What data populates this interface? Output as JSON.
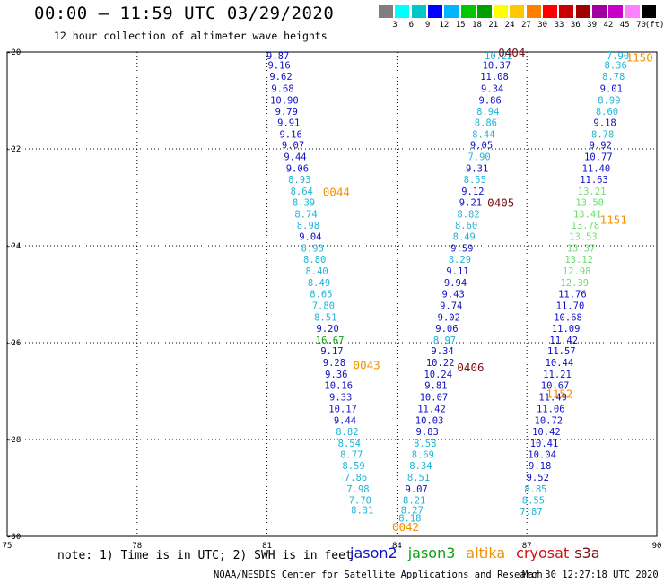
{
  "title": "00:00 – 11:59 UTC 03/29/2020",
  "subtitle": "12 hour collection of altimeter wave heights",
  "color_scale": {
    "unit_label": "(ft)",
    "labels": [
      "3",
      "6",
      "9",
      "12",
      "15",
      "18",
      "21",
      "24",
      "27",
      "30",
      "33",
      "36",
      "39",
      "42",
      "45",
      "70"
    ],
    "colors": [
      "#7f7f7f",
      "#00ffff",
      "#00c8c8",
      "#0000ff",
      "#00b4ff",
      "#00c800",
      "#00a000",
      "#ffff00",
      "#ffc800",
      "#ff8000",
      "#ff0000",
      "#c80000",
      "#a00000",
      "#a000a0",
      "#c800c8",
      "#ff80ff",
      "#000000"
    ]
  },
  "axes": {
    "lon_min": 75,
    "lon_max": 90,
    "lat_min": -30,
    "lat_max": -20,
    "x_ticks": [
      "75",
      "78",
      "81",
      "84",
      "87",
      "90"
    ],
    "y_ticks": [
      "-20",
      "-22",
      "-24",
      "-26",
      "-28",
      "-30"
    ]
  },
  "series_colors": {
    "jason2": "#1010c8",
    "jason3": "#10a010",
    "altika": "#f59000",
    "cryosat": "#d01010",
    "s3a": "#7a1010",
    "cyan": "#20b4d8",
    "lightgreen": "#70dc70"
  },
  "tracks": [
    {
      "color": "jason2",
      "points": [
        [
          81.25,
          -20.07,
          "9.87"
        ],
        [
          81.28,
          -20.27,
          "9.16"
        ],
        [
          81.32,
          -20.5,
          "9.62"
        ],
        [
          81.36,
          -20.75,
          "9.68"
        ],
        [
          81.4,
          -20.99,
          "10.90"
        ],
        [
          81.45,
          -21.22,
          "9.79"
        ],
        [
          81.5,
          -21.45,
          "9.91"
        ],
        [
          81.55,
          -21.69,
          "9.16"
        ],
        [
          81.6,
          -21.92,
          "9.07"
        ],
        [
          81.65,
          -22.16,
          "9.44"
        ],
        [
          81.7,
          -22.4,
          "9.06"
        ]
      ]
    },
    {
      "color": "cyan",
      "points": [
        [
          81.75,
          -22.63,
          "8.93"
        ],
        [
          81.8,
          -22.87,
          "8.64"
        ],
        [
          81.85,
          -23.1,
          "8.39"
        ],
        [
          81.9,
          -23.34,
          "8.74"
        ],
        [
          81.95,
          -23.57,
          "8.98"
        ]
      ]
    },
    {
      "color": "jason2",
      "points": [
        [
          82.0,
          -23.81,
          "9.04"
        ]
      ]
    },
    {
      "color": "cyan",
      "points": [
        [
          82.05,
          -24.05,
          "8.93"
        ],
        [
          82.1,
          -24.28,
          "8.80"
        ],
        [
          82.15,
          -24.52,
          "8.40"
        ],
        [
          82.2,
          -24.76,
          "8.49"
        ],
        [
          82.25,
          -24.99,
          "8.65"
        ],
        [
          82.3,
          -25.23,
          "7.80"
        ],
        [
          82.35,
          -25.47,
          "8.51"
        ]
      ]
    },
    {
      "color": "jason2",
      "points": [
        [
          82.4,
          -25.7,
          "9.20"
        ]
      ]
    },
    {
      "color": "jason3",
      "points": [
        [
          82.45,
          -25.94,
          "16.67"
        ]
      ]
    },
    {
      "color": "jason2",
      "points": [
        [
          82.5,
          -26.17,
          "9.17"
        ],
        [
          82.55,
          -26.41,
          "9.28"
        ],
        [
          82.6,
          -26.65,
          "9.36"
        ],
        [
          82.65,
          -26.88,
          "10.16"
        ],
        [
          82.7,
          -27.12,
          "9.33"
        ],
        [
          82.75,
          -27.36,
          "10.17"
        ],
        [
          82.8,
          -27.6,
          "9.44"
        ]
      ]
    },
    {
      "color": "cyan",
      "points": [
        [
          82.85,
          -27.83,
          "8.82"
        ],
        [
          82.9,
          -28.07,
          "8.54"
        ],
        [
          82.95,
          -28.31,
          "8.77"
        ],
        [
          83.0,
          -28.54,
          "8.59"
        ],
        [
          83.05,
          -28.78,
          "7.86"
        ],
        [
          83.1,
          -29.02,
          "7.98"
        ],
        [
          83.15,
          -29.25,
          "7.70"
        ],
        [
          83.2,
          -29.45,
          "8.31"
        ]
      ]
    },
    {
      "color": "cyan",
      "points": [
        [
          86.35,
          -20.07,
          "10.22"
        ]
      ]
    },
    {
      "color": "jason2",
      "points": [
        [
          86.3,
          -20.27,
          "10.37"
        ],
        [
          86.25,
          -20.5,
          "11.08"
        ],
        [
          86.2,
          -20.75,
          "9.34"
        ],
        [
          86.15,
          -20.99,
          "9.86"
        ]
      ]
    },
    {
      "color": "cyan",
      "points": [
        [
          86.1,
          -21.22,
          "8.94"
        ],
        [
          86.05,
          -21.45,
          "8.86"
        ],
        [
          86.0,
          -21.69,
          "8.44"
        ]
      ]
    },
    {
      "color": "jason2",
      "points": [
        [
          85.95,
          -21.92,
          "9.05"
        ]
      ]
    },
    {
      "color": "cyan",
      "points": [
        [
          85.9,
          -22.16,
          "7.90"
        ]
      ]
    },
    {
      "color": "jason2",
      "points": [
        [
          85.85,
          -22.4,
          "9.31"
        ]
      ]
    },
    {
      "color": "cyan",
      "points": [
        [
          85.8,
          -22.63,
          "8.55"
        ]
      ]
    },
    {
      "color": "jason2",
      "points": [
        [
          85.75,
          -22.87,
          "9.12"
        ],
        [
          85.7,
          -23.1,
          "9.21"
        ]
      ]
    },
    {
      "color": "cyan",
      "points": [
        [
          85.65,
          -23.34,
          "8.82"
        ],
        [
          85.6,
          -23.57,
          "8.60"
        ],
        [
          85.55,
          -23.81,
          "8.49"
        ]
      ]
    },
    {
      "color": "jason2",
      "points": [
        [
          85.5,
          -24.05,
          "9.59"
        ]
      ]
    },
    {
      "color": "cyan",
      "points": [
        [
          85.45,
          -24.28,
          "8.29"
        ]
      ]
    },
    {
      "color": "jason2",
      "points": [
        [
          85.4,
          -24.52,
          "9.11"
        ],
        [
          85.35,
          -24.76,
          "9.94"
        ],
        [
          85.3,
          -24.99,
          "9.43"
        ],
        [
          85.25,
          -25.23,
          "9.74"
        ],
        [
          85.2,
          -25.47,
          "9.02"
        ],
        [
          85.15,
          -25.7,
          "9.06"
        ]
      ]
    },
    {
      "color": "cyan",
      "points": [
        [
          85.1,
          -25.94,
          "8.97"
        ]
      ]
    },
    {
      "color": "jason2",
      "points": [
        [
          85.05,
          -26.17,
          "9.34"
        ],
        [
          85.0,
          -26.41,
          "10.22"
        ],
        [
          84.95,
          -26.65,
          "10.24"
        ],
        [
          84.9,
          -26.88,
          "9.81"
        ],
        [
          84.85,
          -27.12,
          "10.07"
        ],
        [
          84.8,
          -27.36,
          "11.42"
        ],
        [
          84.75,
          -27.6,
          "10.03"
        ],
        [
          84.7,
          -27.83,
          "9.83"
        ]
      ]
    },
    {
      "color": "cyan",
      "points": [
        [
          84.65,
          -28.07,
          "8.58"
        ],
        [
          84.6,
          -28.31,
          "8.69"
        ],
        [
          84.55,
          -28.54,
          "8.34"
        ],
        [
          84.5,
          -28.78,
          "8.51"
        ]
      ]
    },
    {
      "color": "jason2",
      "points": [
        [
          84.45,
          -29.02,
          "9.07"
        ]
      ]
    },
    {
      "color": "cyan",
      "points": [
        [
          84.4,
          -29.25,
          "8.21"
        ],
        [
          84.35,
          -29.45,
          "8.27"
        ],
        [
          84.3,
          -29.62,
          "8.18"
        ]
      ]
    },
    {
      "color": "cyan",
      "points": [
        [
          89.1,
          -20.07,
          "7.90"
        ],
        [
          89.05,
          -20.27,
          "8.36"
        ],
        [
          89.0,
          -20.5,
          "8.78"
        ]
      ]
    },
    {
      "color": "jason2",
      "points": [
        [
          88.95,
          -20.75,
          "9.01"
        ]
      ]
    },
    {
      "color": "cyan",
      "points": [
        [
          88.9,
          -20.99,
          "8.99"
        ],
        [
          88.85,
          -21.22,
          "8.60"
        ]
      ]
    },
    {
      "color": "jason2",
      "points": [
        [
          88.8,
          -21.45,
          "9.18"
        ]
      ]
    },
    {
      "color": "cyan",
      "points": [
        [
          88.75,
          -21.69,
          "8.78"
        ]
      ]
    },
    {
      "color": "jason2",
      "points": [
        [
          88.7,
          -21.92,
          "9.92"
        ],
        [
          88.65,
          -22.16,
          "10.77"
        ],
        [
          88.6,
          -22.4,
          "11.40"
        ],
        [
          88.55,
          -22.63,
          "11.63"
        ]
      ]
    },
    {
      "color": "lightgreen",
      "points": [
        [
          88.5,
          -22.87,
          "13.21"
        ],
        [
          88.45,
          -23.1,
          "13.50"
        ],
        [
          88.4,
          -23.34,
          "13.41"
        ],
        [
          88.35,
          -23.57,
          "13.78"
        ],
        [
          88.3,
          -23.81,
          "13.53"
        ],
        [
          88.25,
          -24.05,
          "13.37"
        ],
        [
          88.2,
          -24.28,
          "13.12"
        ],
        [
          88.15,
          -24.52,
          "12.98"
        ],
        [
          88.1,
          -24.76,
          "12.39"
        ]
      ]
    },
    {
      "color": "jason2",
      "points": [
        [
          88.05,
          -24.99,
          "11.76"
        ],
        [
          88.0,
          -25.23,
          "11.70"
        ],
        [
          87.95,
          -25.47,
          "10.68"
        ],
        [
          87.9,
          -25.7,
          "11.09"
        ],
        [
          87.85,
          -25.94,
          "11.42"
        ],
        [
          87.8,
          -26.17,
          "11.57"
        ],
        [
          87.75,
          -26.41,
          "10.44"
        ],
        [
          87.7,
          -26.65,
          "11.21"
        ],
        [
          87.65,
          -26.88,
          "10.67"
        ],
        [
          87.6,
          -27.12,
          "11.49"
        ],
        [
          87.55,
          -27.36,
          "11.06"
        ],
        [
          87.5,
          -27.6,
          "10.72"
        ],
        [
          87.45,
          -27.83,
          "10.42"
        ],
        [
          87.4,
          -28.07,
          "10.41"
        ],
        [
          87.35,
          -28.31,
          "10.04"
        ],
        [
          87.3,
          -28.54,
          "9.18"
        ],
        [
          87.25,
          -28.78,
          "9.52"
        ]
      ]
    },
    {
      "color": "cyan",
      "points": [
        [
          87.2,
          -29.02,
          "8.85"
        ],
        [
          87.15,
          -29.25,
          "8.55"
        ],
        [
          87.1,
          -29.48,
          "7.87"
        ]
      ]
    }
  ],
  "time_labels": [
    {
      "text": "0404",
      "color": "s3a",
      "lon": 86.65,
      "lat": -20.0
    },
    {
      "text": "1150",
      "color": "altika",
      "lon": 89.6,
      "lat": -20.1
    },
    {
      "text": "0044",
      "color": "altika",
      "lon": 82.6,
      "lat": -22.88
    },
    {
      "text": "0405",
      "color": "s3a",
      "lon": 86.4,
      "lat": -23.1
    },
    {
      "text": "1151",
      "color": "altika",
      "lon": 89.0,
      "lat": -23.45
    },
    {
      "text": "0043",
      "color": "altika",
      "lon": 83.3,
      "lat": -26.45
    },
    {
      "text": "0406",
      "color": "s3a",
      "lon": 85.7,
      "lat": -26.5
    },
    {
      "text": "1152",
      "color": "altika",
      "lon": 87.75,
      "lat": -27.05
    },
    {
      "text": "0042",
      "color": "altika",
      "lon": 84.2,
      "lat": -29.8
    }
  ],
  "footer": {
    "note": "note: 1) Time is in UTC; 2) SWH is in feet",
    "legend": [
      {
        "name": "jason2",
        "color": "jason2"
      },
      {
        "name": "jason3",
        "color": "jason3"
      },
      {
        "name": "altika",
        "color": "altika"
      },
      {
        "name": "cryosat",
        "color": "cryosat"
      },
      {
        "name": "s3a",
        "color": "s3a"
      }
    ],
    "credit": "NOAA/NESDIS Center for Satellite Applications and Research",
    "timestamp": "Mar 30 12:27:18 UTC 2020"
  }
}
